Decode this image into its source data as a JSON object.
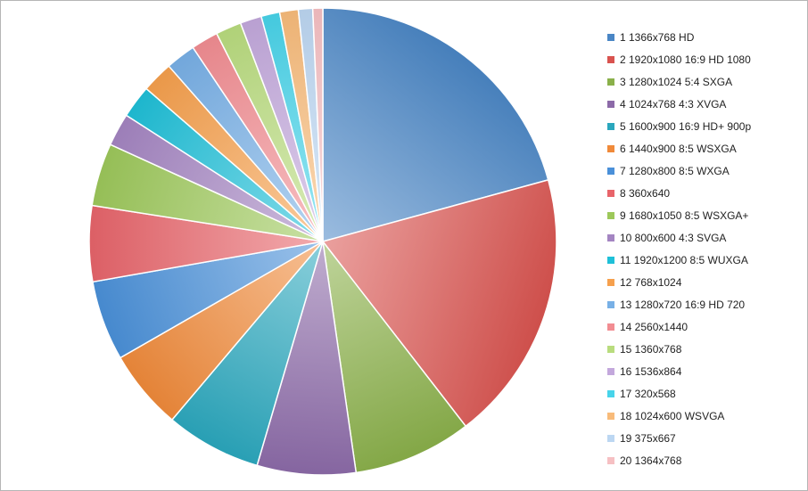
{
  "chart_data": {
    "type": "pie",
    "title": "",
    "legend_position": "right",
    "start": "12 o'clock, clockwise",
    "slices": [
      {
        "label": "1 1366x768 HD",
        "value": 21.0,
        "color": "#4a86c5"
      },
      {
        "label": "2 1920x1080 16:9 HD 1080",
        "value": 19.0,
        "color": "#d9534f"
      },
      {
        "label": "3 1280x1024 5:4 SXGA",
        "value": 8.3,
        "color": "#8ab04a"
      },
      {
        "label": "4 1024x768 4:3 XVGA",
        "value": 6.9,
        "color": "#8c6aa8"
      },
      {
        "label": "5 1600x900 16:9 HD+ 900p",
        "value": 6.7,
        "color": "#2aa7bd"
      },
      {
        "label": "6 1440x900 8:5 WSXGA",
        "value": 5.6,
        "color": "#f08a3a"
      },
      {
        "label": "7 1280x800 8:5 WXGA",
        "value": 5.6,
        "color": "#4a90d9"
      },
      {
        "label": "8 360x640",
        "value": 5.3,
        "color": "#e8646a"
      },
      {
        "label": "9 1680x1050 8:5 WSXGA+",
        "value": 4.4,
        "color": "#9dc85a"
      },
      {
        "label": "10 800x600 4:3 SVGA",
        "value": 2.3,
        "color": "#a485c2"
      },
      {
        "label": "11 1920x1200 8:5 WUXGA",
        "value": 2.3,
        "color": "#1fc0d8"
      },
      {
        "label": "12 768x1024",
        "value": 2.2,
        "color": "#f6a04d"
      },
      {
        "label": "13 1280x720 16:9 HD 720",
        "value": 2.1,
        "color": "#78b0e6"
      },
      {
        "label": "14 2560x1440",
        "value": 1.9,
        "color": "#f28d92"
      },
      {
        "label": "15 1360x768",
        "value": 1.8,
        "color": "#b9dc7e"
      },
      {
        "label": "16 1536x864",
        "value": 1.5,
        "color": "#c3a8dc"
      },
      {
        "label": "17 320x568",
        "value": 1.3,
        "color": "#48d4ea"
      },
      {
        "label": "18 1024x600 WSVGA",
        "value": 1.3,
        "color": "#f8bb7a"
      },
      {
        "label": "19 375x667",
        "value": 1.0,
        "color": "#bcd7f2"
      },
      {
        "label": "20 1364x768",
        "value": 0.7,
        "color": "#f6c0c3"
      }
    ]
  }
}
